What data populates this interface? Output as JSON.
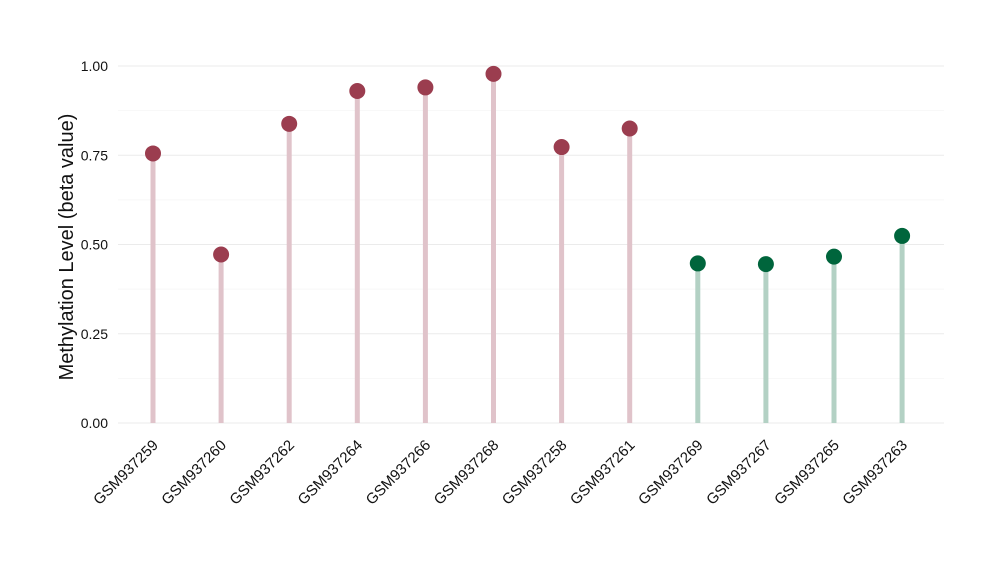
{
  "chart_data": {
    "type": "lollipop",
    "title": "",
    "xlabel": "",
    "ylabel": "Methylation Level (beta value)",
    "ylim": [
      0,
      1.05
    ],
    "yticks": [
      0,
      0.25,
      0.5,
      0.75,
      1.0
    ],
    "ytick_labels": [
      "0.00",
      "0.25",
      "0.50",
      "0.75",
      "1.00"
    ],
    "grid": true,
    "legend": "none",
    "categories": [
      "GSM937259",
      "GSM937260",
      "GSM937262",
      "GSM937264",
      "GSM937266",
      "GSM937268",
      "GSM937258",
      "GSM937261",
      "GSM937269",
      "GSM937267",
      "GSM937265",
      "GSM937263"
    ],
    "values": [
      0.755,
      0.472,
      0.838,
      0.93,
      0.94,
      0.978,
      0.773,
      0.825,
      0.447,
      0.445,
      0.466,
      0.524
    ],
    "groups": [
      0,
      0,
      0,
      0,
      0,
      0,
      0,
      0,
      1,
      1,
      1,
      1
    ],
    "group_colors": {
      "point": [
        "#9b3d4f",
        "#00653c"
      ],
      "stem": [
        "#e0c3ca",
        "#b3d1c4"
      ]
    }
  }
}
